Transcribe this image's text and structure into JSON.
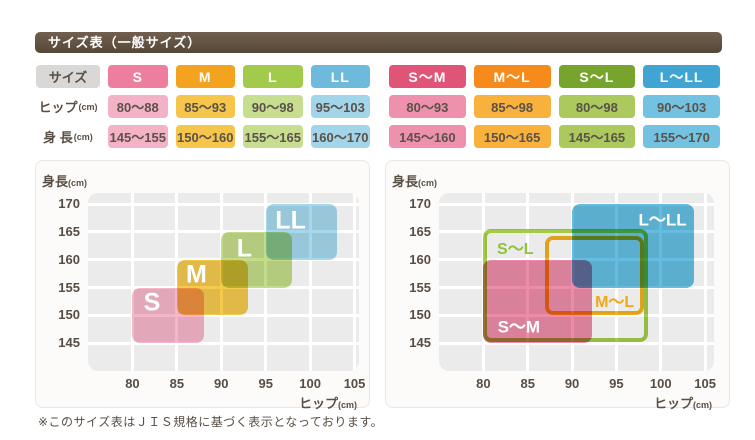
{
  "page": {
    "title": "サイズ表（一般サイズ）",
    "footnote": "※このサイズ表はＪＩＳ規格に基づく表示となっております。"
  },
  "tables": {
    "individual": {
      "label_column": [
        {
          "text": "サイズ",
          "unit": "",
          "gray": true
        },
        {
          "text": "ヒップ",
          "unit": "(cm)",
          "gray": false
        },
        {
          "text": "身 長",
          "unit": "(cm)",
          "gray": false
        }
      ],
      "columns": [
        {
          "size": "S",
          "hip": "80～88",
          "height": "145～155",
          "header_bg": "#ee7e9e",
          "cell_bg": "#f4b2c7"
        },
        {
          "size": "M",
          "hip": "85～93",
          "height": "150～160",
          "header_bg": "#f4a31f",
          "cell_bg": "#f6c64c"
        },
        {
          "size": "L",
          "hip": "90～98",
          "height": "155～165",
          "header_bg": "#a2ca4b",
          "cell_bg": "#c7dd90"
        },
        {
          "size": "LL",
          "hip": "95～103",
          "height": "160～170",
          "header_bg": "#6ebadd",
          "cell_bg": "#a3d5ea"
        }
      ]
    },
    "combined": {
      "columns": [
        {
          "size": "S～M",
          "hip": "80～93",
          "height": "145～160",
          "header_bg": "#e05478",
          "cell_bg": "#ee91ac"
        },
        {
          "size": "M～L",
          "hip": "85～98",
          "height": "150～165",
          "header_bg": "#f68b1b",
          "cell_bg": "#f8b13d"
        },
        {
          "size": "S～L",
          "hip": "80～98",
          "height": "145～165",
          "header_bg": "#77a42c",
          "cell_bg": "#abc95c"
        },
        {
          "size": "L～LL",
          "hip": "90～103",
          "height": "155～170",
          "header_bg": "#41a5d3",
          "cell_bg": "#74c2e1"
        }
      ]
    }
  },
  "chart_data": [
    {
      "name": "individual-sizes",
      "type": "region-plot",
      "xlabel": "ヒップ",
      "xlabel_unit": "(cm)",
      "ylabel": "身長",
      "ylabel_unit": "(cm)",
      "x_ticks": [
        80,
        85,
        90,
        95,
        100,
        105
      ],
      "y_ticks": [
        145,
        150,
        155,
        160,
        165,
        170
      ],
      "xlim": [
        75,
        105.5
      ],
      "ylim": [
        140,
        172
      ],
      "grid": true,
      "regions": [
        {
          "label": "S",
          "hip": [
            80,
            88
          ],
          "height": [
            145,
            155
          ],
          "style": "fill",
          "color": "#f6b6c9",
          "label_color": "#ffffff",
          "label_at": [
            82.2,
            152.2
          ],
          "label_size": 25
        },
        {
          "label": "M",
          "hip": [
            85,
            93
          ],
          "height": [
            150,
            160
          ],
          "style": "fill",
          "color": "#f5c94e",
          "label_color": "#ffffff",
          "label_at": [
            87.2,
            157.2
          ],
          "label_size": 25
        },
        {
          "label": "L",
          "hip": [
            90,
            98
          ],
          "height": [
            155,
            165
          ],
          "style": "fill",
          "color": "#c3dc8a",
          "label_color": "#ffffff",
          "label_at": [
            92.6,
            162.0
          ],
          "label_size": 25
        },
        {
          "label": "LL",
          "hip": [
            95,
            103
          ],
          "height": [
            160,
            170
          ],
          "style": "fill",
          "color": "#a5d8ec",
          "label_color": "#ffffff",
          "label_at": [
            97.8,
            167.0
          ],
          "label_size": 25
        }
      ]
    },
    {
      "name": "combined-sizes",
      "type": "region-plot",
      "xlabel": "ヒップ",
      "xlabel_unit": "(cm)",
      "ylabel": "身長",
      "ylabel_unit": "(cm)",
      "x_ticks": [
        80,
        85,
        90,
        95,
        100,
        105
      ],
      "y_ticks": [
        145,
        150,
        155,
        160,
        165,
        170
      ],
      "xlim": [
        75,
        106
      ],
      "ylim": [
        140,
        172
      ],
      "grid": true,
      "regions": [
        {
          "label": "S～M",
          "hip": [
            80,
            93
          ],
          "height": [
            145,
            160
          ],
          "style": "fill",
          "color": "#ec8ca8",
          "label_color": "#ffffff",
          "label_at": [
            84.0,
            147.9
          ],
          "label_size": 17,
          "draw": {
            "hip": [
              80,
              92.3
            ],
            "height": [
              145,
              160
            ]
          }
        },
        {
          "label": "L～LL",
          "hip": [
            90,
            103
          ],
          "height": [
            155,
            170
          ],
          "style": "fill",
          "color": "#64bde0",
          "label_color": "#ffffff",
          "label_at": [
            100.2,
            167.2
          ],
          "label_size": 17,
          "draw": {
            "hip": [
              90,
              103.7
            ],
            "height": [
              155,
              170
            ]
          }
        },
        {
          "label": "S～L",
          "hip": [
            80,
            98
          ],
          "height": [
            145,
            165
          ],
          "style": "outline",
          "color": "#a2cb47",
          "label_color": "#8fc13a",
          "label_at": [
            83.6,
            161.7
          ],
          "label_size": 16,
          "draw": {
            "hip": [
              80,
              98.6
            ],
            "height": [
              145.2,
              165.5
            ]
          }
        },
        {
          "label": "M～L",
          "hip": [
            85,
            98
          ],
          "height": [
            150,
            165
          ],
          "style": "outline",
          "color": "#f4b01e",
          "label_color": "#f0a816",
          "label_at": [
            94.8,
            152.2
          ],
          "label_size": 16,
          "draw": {
            "hip": [
              86.9,
              98.1
            ],
            "height": [
              150,
              164.3
            ]
          }
        }
      ]
    }
  ]
}
